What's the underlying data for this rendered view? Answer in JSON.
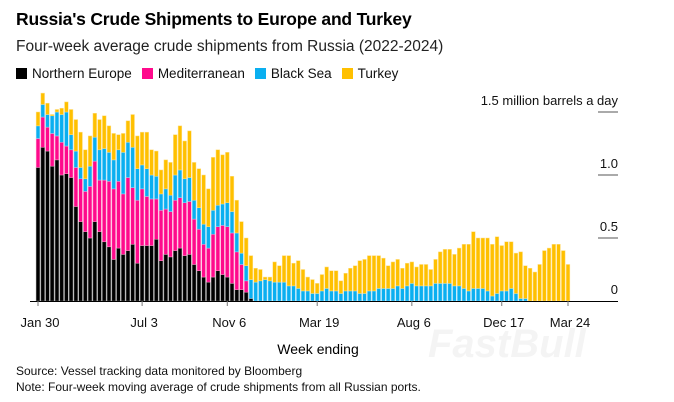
{
  "title": "Russia's Crude Shipments to Europe and Turkey",
  "subtitle": "Four-week average crude shipments from Russia (2022-2024)",
  "source": "Source: Vessel tracking data monitored by Bloomberg",
  "note": "Note: Four-week moving average of crude shipments from all Russian ports.",
  "watermark": "FastBull",
  "chart_data": {
    "type": "bar",
    "stacked": true,
    "title": "Russia's Crude Shipments to Europe and Turkey",
    "xlabel": "Week ending",
    "ylabel": "million barrels a day",
    "ylim": [
      0,
      1.5
    ],
    "grid": false,
    "legend_position": "top-left",
    "y_ticks": [
      {
        "value": 1.5,
        "label": "1.5 million barrels a day"
      },
      {
        "value": 1.0,
        "label": "1.0"
      },
      {
        "value": 0.5,
        "label": "0.5"
      },
      {
        "value": 0,
        "label": "0"
      }
    ],
    "x_ticks": [
      {
        "date": "2022-01-30",
        "label": "Jan 30"
      },
      {
        "date": "2022-07-03",
        "label": "Jul 3"
      },
      {
        "date": "2022-11-06",
        "label": "Nov 6"
      },
      {
        "date": "2023-03-19",
        "label": "Mar 19"
      },
      {
        "date": "2023-08-06",
        "label": "Aug 6"
      },
      {
        "date": "2023-12-17",
        "label": "Dec 17"
      },
      {
        "date": "2024-03-24",
        "label": "Mar 24"
      }
    ],
    "x": [
      "2022-01-30",
      "2022-02-06",
      "2022-02-13",
      "2022-02-20",
      "2022-02-27",
      "2022-03-06",
      "2022-03-13",
      "2022-03-20",
      "2022-03-27",
      "2022-04-03",
      "2022-04-10",
      "2022-04-17",
      "2022-04-24",
      "2022-05-01",
      "2022-05-08",
      "2022-05-15",
      "2022-05-22",
      "2022-05-29",
      "2022-06-05",
      "2022-06-12",
      "2022-06-19",
      "2022-06-26",
      "2022-07-03",
      "2022-07-10",
      "2022-07-17",
      "2022-07-24",
      "2022-07-31",
      "2022-08-07",
      "2022-08-14",
      "2022-08-21",
      "2022-08-28",
      "2022-09-04",
      "2022-09-11",
      "2022-09-18",
      "2022-09-25",
      "2022-10-02",
      "2022-10-09",
      "2022-10-16",
      "2022-10-23",
      "2022-10-30",
      "2022-11-06",
      "2022-11-13",
      "2022-11-20",
      "2022-11-27",
      "2022-12-04",
      "2022-12-11",
      "2022-12-18",
      "2022-12-25",
      "2023-01-01",
      "2023-01-08",
      "2023-01-15",
      "2023-01-22",
      "2023-01-29",
      "2023-02-05",
      "2023-02-12",
      "2023-02-19",
      "2023-02-26",
      "2023-03-05",
      "2023-03-12",
      "2023-03-19",
      "2023-03-26",
      "2023-04-02",
      "2023-04-09",
      "2023-04-16",
      "2023-04-23",
      "2023-04-30",
      "2023-05-07",
      "2023-05-14",
      "2023-05-21",
      "2023-05-28",
      "2023-06-04",
      "2023-06-11",
      "2023-06-18",
      "2023-06-25",
      "2023-07-02",
      "2023-07-09",
      "2023-07-16",
      "2023-07-23",
      "2023-07-30",
      "2023-08-06",
      "2023-08-13",
      "2023-08-20",
      "2023-08-27",
      "2023-09-03",
      "2023-09-10",
      "2023-09-17",
      "2023-09-24",
      "2023-10-01",
      "2023-10-08",
      "2023-10-15",
      "2023-10-22",
      "2023-10-29",
      "2023-11-05",
      "2023-11-12",
      "2023-11-19",
      "2023-11-26",
      "2023-12-03",
      "2023-12-10",
      "2023-12-17",
      "2023-12-24",
      "2023-12-31",
      "2024-01-07",
      "2024-01-14",
      "2024-01-21",
      "2024-01-28",
      "2024-02-04",
      "2024-02-11",
      "2024-02-18",
      "2024-02-25",
      "2024-03-03",
      "2024-03-10",
      "2024-03-17",
      "2024-03-24"
    ],
    "series": [
      {
        "name": "Northern Europe",
        "color": "#000000",
        "values": [
          1.06,
          1.22,
          1.19,
          1.07,
          1.12,
          1.0,
          1.01,
          0.98,
          0.75,
          0.63,
          0.55,
          0.5,
          0.63,
          0.55,
          0.47,
          0.43,
          0.33,
          0.42,
          0.37,
          0.4,
          0.45,
          0.3,
          0.44,
          0.44,
          0.44,
          0.49,
          0.32,
          0.37,
          0.35,
          0.4,
          0.42,
          0.36,
          0.37,
          0.29,
          0.24,
          0.19,
          0.15,
          0.19,
          0.24,
          0.21,
          0.19,
          0.14,
          0.09,
          0.09,
          0.07,
          0.02,
          0,
          0,
          0,
          0,
          0,
          0,
          0,
          0,
          0,
          0,
          0,
          0,
          0,
          0,
          0,
          0,
          0,
          0,
          0,
          0,
          0,
          0,
          0,
          0,
          0,
          0,
          0,
          0,
          0,
          0,
          0,
          0,
          0,
          0,
          0,
          0,
          0,
          0,
          0,
          0,
          0,
          0,
          0,
          0,
          0,
          0,
          0,
          0,
          0,
          0,
          0,
          0,
          0,
          0,
          0,
          0,
          0,
          0,
          0,
          0,
          0,
          0,
          0,
          0,
          0,
          0,
          0
        ]
      },
      {
        "name": "Mediterranean",
        "color": "#ff0a8c",
        "values": [
          0.23,
          0.24,
          0.19,
          0.26,
          0.19,
          0.26,
          0.22,
          0.22,
          0.31,
          0.34,
          0.32,
          0.41,
          0.48,
          0.41,
          0.49,
          0.52,
          0.56,
          0.53,
          0.48,
          0.58,
          0.45,
          0.5,
          0.45,
          0.39,
          0.37,
          0.32,
          0.4,
          0.36,
          0.36,
          0.4,
          0.4,
          0.42,
          0.42,
          0.36,
          0.33,
          0.26,
          0.27,
          0.34,
          0.35,
          0.39,
          0.4,
          0.4,
          0.3,
          0.2,
          0.09,
          0,
          0,
          0,
          0,
          0,
          0,
          0,
          0,
          0,
          0,
          0,
          0,
          0,
          0,
          0,
          0,
          0,
          0,
          0,
          0,
          0,
          0,
          0,
          0,
          0,
          0,
          0,
          0,
          0,
          0,
          0,
          0,
          0,
          0,
          0,
          0,
          0,
          0,
          0,
          0,
          0,
          0,
          0,
          0,
          0,
          0,
          0,
          0,
          0,
          0,
          0,
          0,
          0,
          0,
          0,
          0,
          0,
          0,
          0,
          0,
          0,
          0,
          0,
          0,
          0,
          0,
          0,
          0
        ]
      },
      {
        "name": "Black Sea",
        "color": "#0aaff0",
        "values": [
          0.1,
          0.1,
          0.1,
          0.14,
          0.19,
          0.22,
          0.27,
          0.12,
          0.13,
          0.09,
          0.1,
          0.16,
          0.19,
          0.24,
          0.25,
          0.23,
          0.23,
          0.25,
          0.33,
          0.28,
          0.32,
          0.25,
          0.19,
          0.22,
          0.19,
          0.18,
          0.13,
          0.16,
          0.13,
          0.2,
          0.22,
          0.19,
          0.19,
          0.15,
          0.17,
          0.16,
          0.17,
          0.19,
          0.17,
          0.17,
          0.19,
          0.17,
          0.15,
          0.09,
          0.12,
          0.15,
          0.15,
          0.16,
          0.17,
          0.16,
          0.15,
          0.15,
          0.15,
          0.12,
          0.12,
          0.1,
          0.08,
          0.08,
          0.06,
          0.06,
          0.08,
          0.1,
          0.08,
          0.08,
          0.06,
          0.08,
          0.08,
          0.08,
          0.06,
          0.06,
          0.08,
          0.08,
          0.1,
          0.1,
          0.1,
          0.1,
          0.12,
          0.1,
          0.12,
          0.14,
          0.12,
          0.12,
          0.12,
          0.12,
          0.14,
          0.14,
          0.14,
          0.14,
          0.12,
          0.12,
          0.1,
          0.08,
          0.1,
          0.1,
          0.1,
          0.08,
          0.04,
          0.06,
          0.08,
          0.08,
          0.1,
          0.06,
          0.02,
          0.02,
          0,
          0,
          0,
          0,
          0,
          0,
          0,
          0,
          0
        ]
      },
      {
        "name": "Turkey",
        "color": "#ffc000",
        "values": [
          0.11,
          0.09,
          0.09,
          0.01,
          0.02,
          0.05,
          0.08,
          0.2,
          0.25,
          0.28,
          0.23,
          0.24,
          0.19,
          0.24,
          0.26,
          0.21,
          0.21,
          0.12,
          0.15,
          0.17,
          0.26,
          0.26,
          0.26,
          0.29,
          0.2,
          0.2,
          0.19,
          0.23,
          0.26,
          0.32,
          0.35,
          0.3,
          0.37,
          0.3,
          0.31,
          0.39,
          0.3,
          0.42,
          0.44,
          0.39,
          0.4,
          0.28,
          0.26,
          0.25,
          0.22,
          0.19,
          0.11,
          0.09,
          0.02,
          0.03,
          0.16,
          0.13,
          0.21,
          0.24,
          0.18,
          0.22,
          0.17,
          0.11,
          0.11,
          0.08,
          0.13,
          0.17,
          0.16,
          0.16,
          0.1,
          0.14,
          0.18,
          0.2,
          0.26,
          0.27,
          0.28,
          0.28,
          0.26,
          0.24,
          0.18,
          0.21,
          0.21,
          0.16,
          0.18,
          0.17,
          0.15,
          0.17,
          0.17,
          0.13,
          0.19,
          0.25,
          0.27,
          0.27,
          0.25,
          0.3,
          0.35,
          0.37,
          0.45,
          0.4,
          0.4,
          0.42,
          0.41,
          0.45,
          0.36,
          0.39,
          0.37,
          0.32,
          0.37,
          0.26,
          0.26,
          0.23,
          0.29,
          0.4,
          0.42,
          0.45,
          0.45,
          0.4,
          0.29
        ]
      }
    ]
  }
}
